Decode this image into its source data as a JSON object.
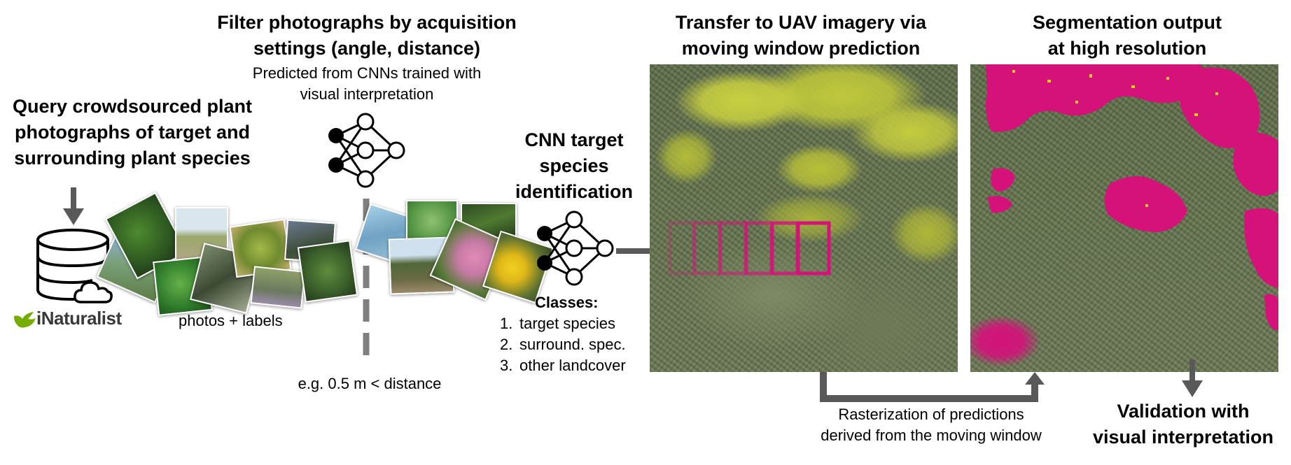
{
  "step1": {
    "title_lines": [
      "Query crowdsourced plant",
      "photographs of target and",
      "surrounding plant species"
    ],
    "photos_label": "photos + labels",
    "brand": "iNaturalist"
  },
  "step2": {
    "title_lines": [
      "Filter photographs by acquisition",
      "settings (angle, distance)"
    ],
    "sub_lines": [
      "Predicted from CNNs trained with",
      "visual interpretation"
    ],
    "threshold": "e.g. 0.5 m < distance"
  },
  "step3": {
    "title_lines": [
      "CNN target",
      "species",
      "identification"
    ],
    "classes_title": "Classes:",
    "classes": [
      {
        "num": "1.",
        "text": "target species"
      },
      {
        "num": "2.",
        "text": "surround. spec."
      },
      {
        "num": "3.",
        "text": "other landcover"
      }
    ]
  },
  "step4": {
    "title_lines": [
      "Transfer to UAV imagery via",
      "moving window prediction"
    ]
  },
  "step5": {
    "title_lines": [
      "Segmentation output",
      "at high resolution"
    ]
  },
  "rasterization": {
    "lines": [
      "Rasterization of predictions",
      "derived from the moving window"
    ]
  },
  "validation": {
    "lines": [
      "Validation with",
      "visual interpretation"
    ]
  },
  "colors": {
    "arrow": "#595959",
    "segmentation": "#d4127a",
    "vegetation_dark": "#5a6a4a",
    "vegetation_yellow": "#c8d040"
  },
  "icons": [
    "database-icon",
    "cloud-icon",
    "neural-network-icon",
    "inaturalist-bird-icon"
  ]
}
